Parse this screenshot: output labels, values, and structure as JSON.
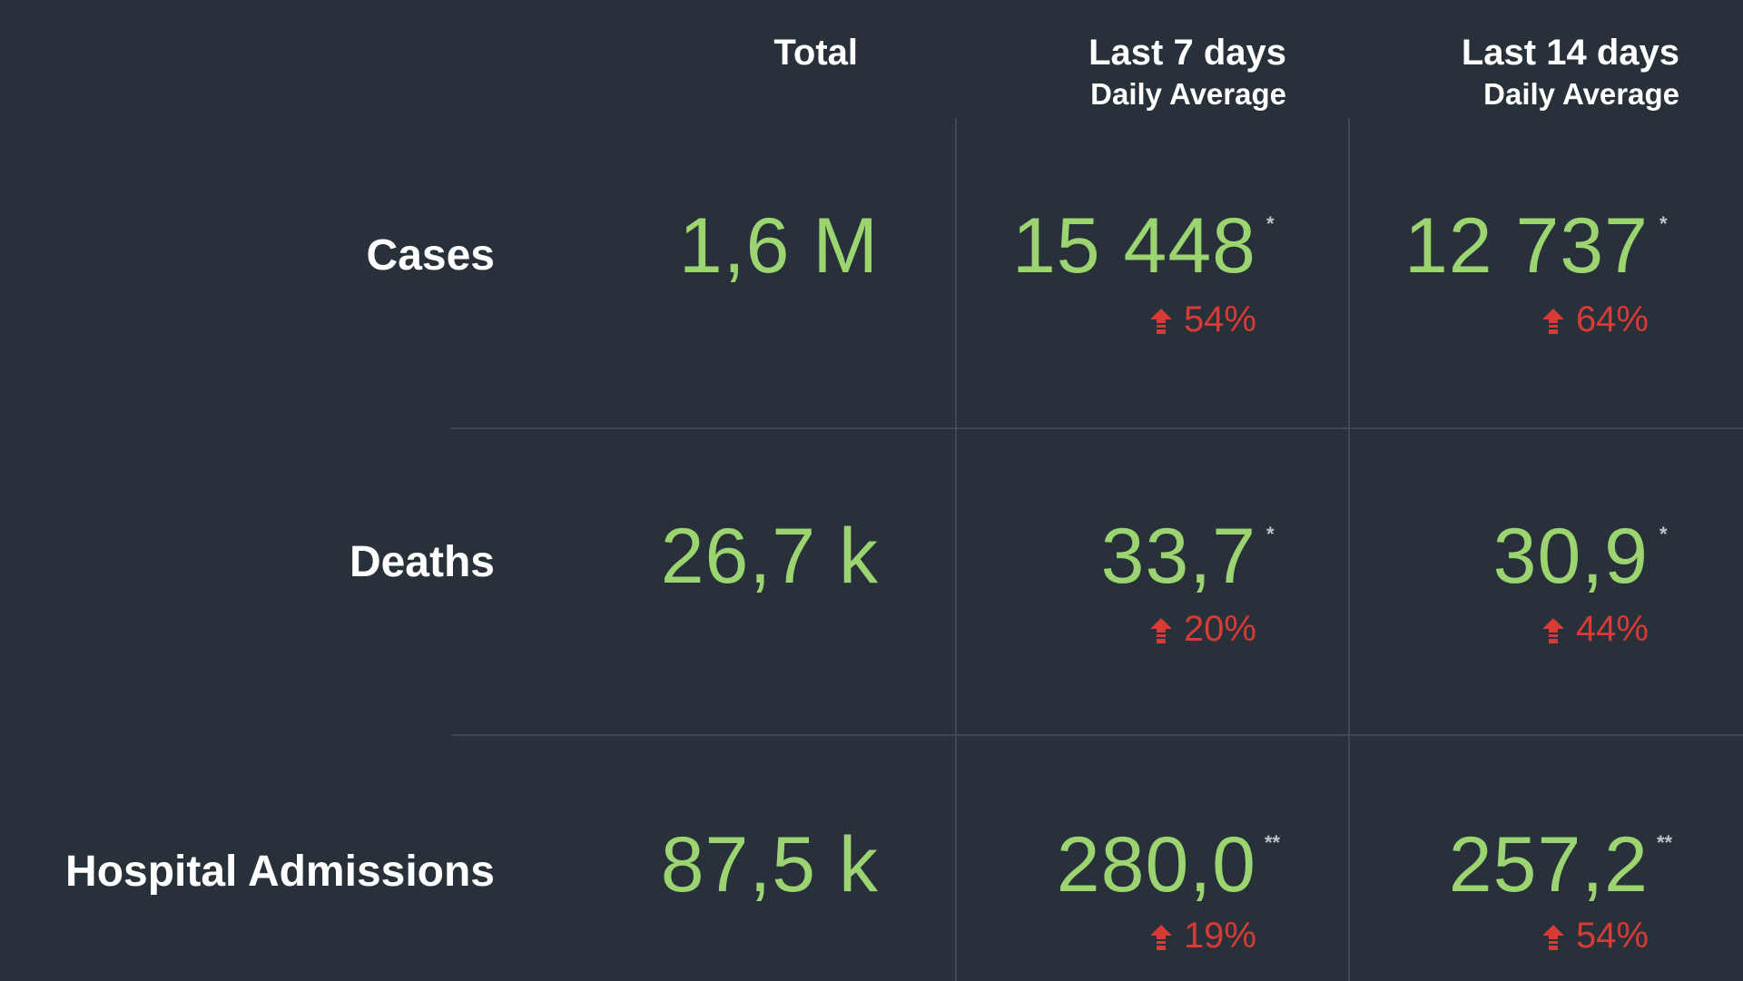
{
  "headers": {
    "total": "Total",
    "last7": "Last 7 days",
    "last7_sub": "Daily Average",
    "last14": "Last 14 days",
    "last14_sub": "Daily Average"
  },
  "rows": [
    {
      "label": "Cases",
      "total": "1,6 M",
      "last7": "15 448",
      "last7_mark": "*",
      "last7_change": "54%",
      "last14": "12 737",
      "last14_mark": "*",
      "last14_change": "64%"
    },
    {
      "label": "Deaths",
      "total": "26,7 k",
      "last7": "33,7",
      "last7_mark": "*",
      "last7_change": "20%",
      "last14": "30,9",
      "last14_mark": "*",
      "last14_change": "44%"
    },
    {
      "label": "Hospital Admissions",
      "total": "87,5 k",
      "last7": "280,0",
      "last7_mark": "**",
      "last7_change": "19%",
      "last14": "257,2",
      "last14_mark": "**",
      "last14_change": "54%"
    }
  ],
  "icons": {
    "change": "arrow-up-icon"
  },
  "colors": {
    "background": "#28313a",
    "value": "#9bd470",
    "increase": "#d83a35",
    "text": "#ffffff"
  }
}
